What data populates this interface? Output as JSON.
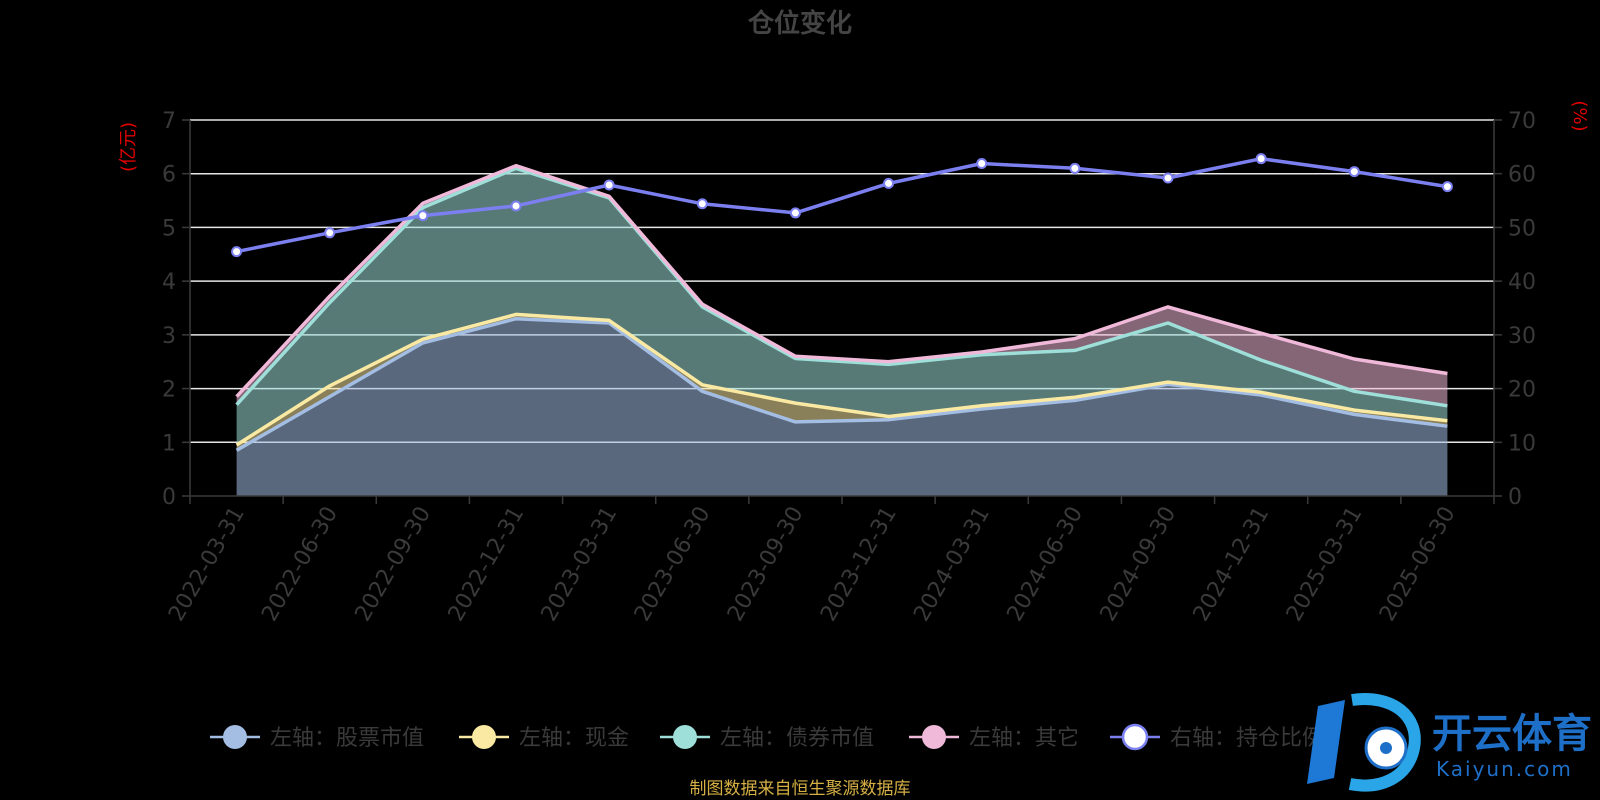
{
  "chart_data": {
    "type": "area",
    "title": "仓位变化",
    "y_left_unit": "(亿元)",
    "y_right_unit": "(%)",
    "ylim_left": [
      0,
      7
    ],
    "ylim_right": [
      0,
      70
    ],
    "yticks_left": [
      "0",
      "1",
      "2",
      "3",
      "4",
      "5",
      "6",
      "7"
    ],
    "yticks_right": [
      "0",
      "10",
      "20",
      "30",
      "40",
      "50",
      "60",
      "70"
    ],
    "categories": [
      "2022-03-31",
      "2022-06-30",
      "2022-09-30",
      "2022-12-31",
      "2023-03-31",
      "2023-06-30",
      "2023-09-30",
      "2023-12-31",
      "2024-03-31",
      "2024-06-30",
      "2024-09-30",
      "2024-12-31",
      "2025-03-31",
      "2025-06-30"
    ],
    "series": [
      {
        "name": "左轴：股票市值",
        "axis": "left",
        "kind": "stacked-area",
        "color": "#a3bde3",
        "values": [
          0.85,
          1.85,
          2.85,
          3.3,
          3.22,
          1.95,
          1.38,
          1.42,
          1.62,
          1.78,
          2.08,
          1.88,
          1.52,
          1.3
        ]
      },
      {
        "name": "左轴：现金",
        "axis": "left",
        "kind": "stacked-area",
        "color": "#fae9a3",
        "values": [
          0.1,
          0.2,
          0.07,
          0.08,
          0.05,
          0.12,
          0.35,
          0.06,
          0.06,
          0.06,
          0.04,
          0.05,
          0.08,
          0.1
        ]
      },
      {
        "name": "左轴：债券市值",
        "axis": "left",
        "kind": "stacked-area",
        "color": "#9fdfd9",
        "values": [
          0.75,
          1.55,
          2.45,
          2.72,
          2.28,
          1.45,
          0.83,
          0.97,
          0.95,
          0.87,
          1.1,
          0.6,
          0.35,
          0.28
        ]
      },
      {
        "name": "左轴：其它",
        "axis": "left",
        "kind": "stacked-area",
        "color": "#f0b9d9",
        "values": [
          0.15,
          0.12,
          0.08,
          0.05,
          0.03,
          0.05,
          0.04,
          0.05,
          0.05,
          0.22,
          0.3,
          0.5,
          0.6,
          0.6
        ]
      },
      {
        "name": "右轴：持仓比例",
        "axis": "right",
        "kind": "line",
        "color": "#7b7ff0",
        "values": [
          45.5,
          49.0,
          52.2,
          54.0,
          57.9,
          54.4,
          52.7,
          58.2,
          61.9,
          61.0,
          59.2,
          62.8,
          60.4,
          57.6
        ]
      }
    ],
    "legend_position": "bottom",
    "grid": true
  },
  "footer": {
    "source": "制图数据来自恒生聚源数据库"
  },
  "watermark": {
    "brand": "开云体育",
    "domain": "Kaiyun.com"
  }
}
